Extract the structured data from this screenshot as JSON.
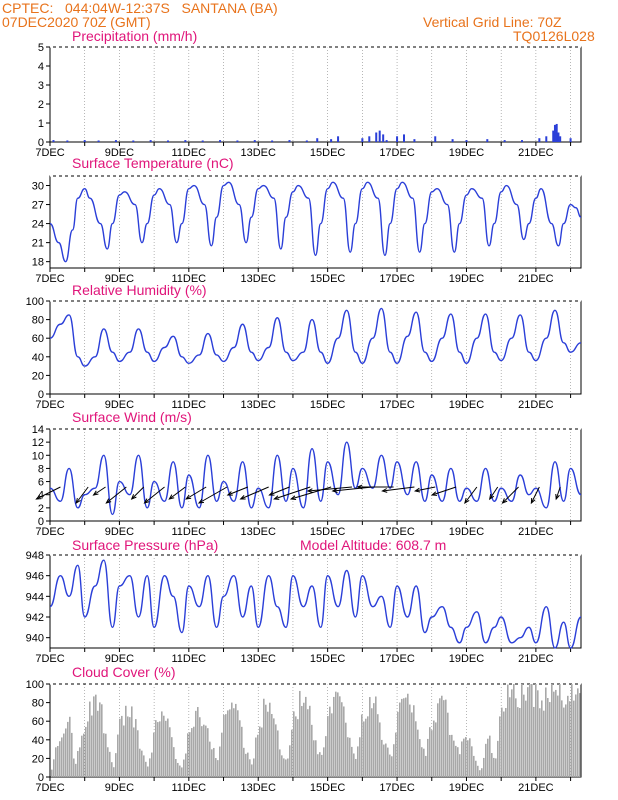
{
  "header": {
    "line1": "CPTEC:   044:04W-12:37S   SANTANA (BA)",
    "line2": "07DEC2020 70Z (GMT)",
    "right1": "Vertical Grid Line: 70Z",
    "right2": "TQ0126L028"
  },
  "colors": {
    "header": "#e8731c",
    "title": "#e0157a",
    "line": "#2b3fd8",
    "cloud": "#a8a8a8",
    "grid": "#888888"
  },
  "date_ticks": [
    "7DEC",
    "9DEC",
    "11DEC",
    "13DEC",
    "15DEC",
    "17DEC",
    "19DEC",
    "21DEC"
  ],
  "date_tick_days": [
    0,
    2,
    4,
    6,
    8,
    10,
    12,
    14
  ],
  "chart_data": [
    {
      "id": "precip",
      "type": "bar",
      "title": "Precipitation (mm/h)",
      "ylim": [
        0,
        5
      ],
      "yticks": [
        0,
        1,
        2,
        3,
        4,
        5
      ],
      "xlim_days": [
        0,
        15.3
      ],
      "x_days": [
        0.1,
        0.5,
        1.0,
        1.4,
        1.9,
        2.4,
        2.9,
        3.4,
        3.9,
        4.4,
        4.9,
        5.4,
        5.9,
        6.4,
        6.9,
        7.4,
        7.7,
        8.1,
        8.3,
        9.0,
        9.2,
        9.4,
        9.5,
        9.6,
        9.7,
        10.0,
        10.2,
        10.5,
        11.1,
        11.6,
        12.0,
        12.6,
        13.1,
        13.6,
        14.1,
        14.3,
        14.5,
        14.55,
        14.6,
        14.65,
        14.7,
        15.0
      ],
      "values": [
        0.1,
        0.08,
        0.1,
        0.08,
        0.1,
        0.08,
        0.1,
        0.08,
        0.1,
        0.08,
        0.1,
        0.08,
        0.1,
        0.08,
        0.1,
        0.08,
        0.2,
        0.15,
        0.3,
        0.2,
        0.3,
        0.5,
        0.6,
        0.4,
        0.1,
        0.3,
        0.4,
        0.15,
        0.3,
        0.15,
        0.1,
        0.15,
        0.1,
        0.1,
        0.2,
        0.3,
        0.6,
        0.9,
        0.95,
        0.5,
        0.3,
        0.2
      ]
    },
    {
      "id": "temp",
      "type": "line",
      "title": "Surface Temperature (nC)",
      "ylim": [
        17,
        31.5
      ],
      "yticks": [
        18,
        21,
        24,
        27,
        30
      ],
      "x_days": [
        0,
        0.25,
        0.45,
        0.65,
        0.8,
        1.0,
        1.15,
        1.45,
        1.65,
        1.8,
        2.0,
        2.15,
        2.45,
        2.65,
        2.8,
        3.0,
        3.15,
        3.45,
        3.65,
        3.8,
        4.0,
        4.15,
        4.45,
        4.65,
        4.8,
        5.0,
        5.15,
        5.45,
        5.65,
        5.8,
        6.0,
        6.15,
        6.45,
        6.65,
        6.8,
        7.0,
        7.15,
        7.45,
        7.65,
        7.8,
        8.0,
        8.15,
        8.45,
        8.65,
        8.8,
        9.0,
        9.15,
        9.45,
        9.65,
        9.8,
        10.0,
        10.15,
        10.45,
        10.65,
        10.8,
        11.0,
        11.15,
        11.45,
        11.65,
        11.8,
        12.0,
        12.15,
        12.45,
        12.65,
        12.8,
        13.0,
        13.15,
        13.45,
        13.65,
        13.8,
        14.0,
        14.15,
        14.45,
        14.65,
        14.8,
        15.0,
        15.15,
        15.3
      ],
      "values": [
        24,
        21,
        18,
        23,
        28,
        29.5,
        28,
        24,
        20,
        24,
        28.5,
        29,
        27,
        21,
        24,
        28.5,
        29.5,
        27,
        21,
        24,
        29.5,
        30,
        27,
        20.5,
        25,
        30,
        30.5,
        27,
        21,
        25,
        29.5,
        30,
        28,
        20,
        25,
        29,
        30,
        28,
        19,
        24,
        29.5,
        30.5,
        28,
        19.5,
        24,
        29.5,
        30.5,
        28,
        19,
        24,
        29.5,
        30.5,
        28,
        19.5,
        24,
        29,
        29.5,
        27,
        19.5,
        24,
        28.5,
        29.5,
        28,
        20.5,
        24,
        29,
        30,
        27,
        21.5,
        24,
        28,
        29.5,
        24,
        20.5,
        24,
        27,
        26.5,
        25
      ]
    },
    {
      "id": "rh",
      "type": "line",
      "title": "Relative Humidity (%)",
      "ylim": [
        0,
        100
      ],
      "yticks": [
        0,
        20,
        40,
        60,
        80,
        100
      ],
      "x_days": [
        0,
        0.3,
        0.55,
        0.8,
        1.0,
        1.3,
        1.55,
        1.8,
        2.0,
        2.3,
        2.55,
        2.8,
        3.0,
        3.3,
        3.55,
        3.8,
        4.0,
        4.3,
        4.55,
        4.8,
        5.0,
        5.3,
        5.55,
        5.8,
        6.0,
        6.3,
        6.55,
        6.8,
        7.0,
        7.3,
        7.55,
        7.8,
        8.0,
        8.3,
        8.55,
        8.8,
        9.0,
        9.3,
        9.55,
        9.8,
        10.0,
        10.3,
        10.55,
        10.8,
        11.0,
        11.3,
        11.55,
        11.8,
        12.0,
        12.3,
        12.55,
        12.8,
        13.0,
        13.3,
        13.55,
        13.8,
        14.0,
        14.3,
        14.55,
        14.8,
        15.0,
        15.3
      ],
      "values": [
        60,
        75,
        85,
        40,
        30,
        40,
        70,
        45,
        35,
        45,
        70,
        45,
        35,
        50,
        62,
        40,
        33,
        42,
        65,
        42,
        35,
        50,
        75,
        45,
        36,
        50,
        82,
        45,
        36,
        45,
        80,
        45,
        33,
        60,
        90,
        45,
        33,
        60,
        92,
        45,
        33,
        62,
        88,
        45,
        35,
        60,
        86,
        45,
        33,
        60,
        86,
        45,
        36,
        60,
        85,
        45,
        36,
        60,
        90,
        55,
        45,
        55
      ]
    },
    {
      "id": "wind",
      "type": "line",
      "title": "Surface Wind (m/s)",
      "ylim": [
        0,
        14
      ],
      "yticks": [
        0,
        2,
        4,
        6,
        8,
        10,
        12,
        14
      ],
      "x_days": [
        0,
        0.3,
        0.55,
        0.8,
        1.0,
        1.3,
        1.55,
        1.8,
        2.0,
        2.3,
        2.55,
        2.8,
        3.0,
        3.3,
        3.55,
        3.8,
        4.0,
        4.3,
        4.55,
        4.8,
        5.0,
        5.3,
        5.55,
        5.8,
        6.0,
        6.3,
        6.55,
        6.8,
        7.0,
        7.3,
        7.55,
        7.8,
        8.0,
        8.3,
        8.55,
        8.8,
        9.0,
        9.3,
        9.55,
        9.8,
        10.0,
        10.3,
        10.55,
        10.8,
        11.0,
        11.3,
        11.55,
        11.8,
        12.0,
        12.3,
        12.55,
        12.8,
        13.0,
        13.3,
        13.55,
        13.8,
        14.0,
        14.3,
        14.55,
        14.8,
        15.0,
        15.3
      ],
      "values": [
        5,
        3,
        8,
        2,
        4,
        5,
        10,
        1,
        6,
        4,
        10,
        2,
        6,
        3,
        9,
        2,
        7,
        2,
        10,
        3,
        6,
        3,
        9,
        2,
        5,
        2,
        10,
        3,
        8,
        2,
        11,
        3,
        9,
        4,
        12,
        5,
        8,
        5,
        10,
        5,
        9,
        4,
        9,
        3,
        7,
        3,
        8,
        3,
        5,
        3,
        8,
        3,
        5,
        3,
        7,
        4,
        5,
        2,
        9,
        3,
        8,
        4
      ]
    },
    {
      "id": "pres",
      "type": "line",
      "title": "Surface Pressure (hPa)",
      "annotation": "Model Altitude: 608.7 m",
      "ylim": [
        939,
        948
      ],
      "yticks": [
        940,
        942,
        944,
        946,
        948
      ],
      "x_days": [
        0,
        0.3,
        0.55,
        0.8,
        1.0,
        1.3,
        1.55,
        1.8,
        2.0,
        2.3,
        2.55,
        2.8,
        3.0,
        3.3,
        3.55,
        3.8,
        4.0,
        4.3,
        4.55,
        4.8,
        5.0,
        5.3,
        5.55,
        5.8,
        6.0,
        6.3,
        6.55,
        6.8,
        7.0,
        7.3,
        7.55,
        7.8,
        8.0,
        8.3,
        8.55,
        8.8,
        9.0,
        9.3,
        9.55,
        9.8,
        10.0,
        10.3,
        10.55,
        10.8,
        11.0,
        11.3,
        11.55,
        11.8,
        12.0,
        12.3,
        12.55,
        12.8,
        13.0,
        13.3,
        13.55,
        13.8,
        14.0,
        14.3,
        14.55,
        14.8,
        15.0,
        15.3
      ],
      "values": [
        943,
        946,
        944,
        947,
        942,
        945,
        947.5,
        941,
        945,
        946,
        942,
        946,
        941,
        946,
        944,
        940.5,
        945,
        943,
        946,
        941,
        944,
        946,
        942,
        945,
        941,
        946,
        943,
        941,
        946,
        943,
        945,
        941,
        946,
        943,
        946.5,
        942,
        946,
        943,
        944,
        941,
        945,
        942,
        945,
        940.5,
        942,
        943,
        941,
        939.5,
        941,
        942.5,
        939.5,
        941,
        942,
        939.5,
        940,
        941,
        939.5,
        943,
        939,
        941.5,
        939,
        942
      ]
    },
    {
      "id": "cloud",
      "type": "area",
      "title": "Cloud Cover (%)",
      "ylim": [
        0,
        100
      ],
      "yticks": [
        0,
        20,
        40,
        60,
        80,
        100
      ],
      "x_days": [
        0,
        0.2,
        0.4,
        0.55,
        0.7,
        0.85,
        1.0,
        1.2,
        1.4,
        1.6,
        1.8,
        2.0,
        2.2,
        2.4,
        2.6,
        2.8,
        3.0,
        3.2,
        3.4,
        3.6,
        3.8,
        4.0,
        4.2,
        4.4,
        4.6,
        4.8,
        5.0,
        5.2,
        5.4,
        5.6,
        5.8,
        6.0,
        6.2,
        6.4,
        6.6,
        6.8,
        7.0,
        7.2,
        7.4,
        7.6,
        7.8,
        8.0,
        8.2,
        8.4,
        8.6,
        8.8,
        9.0,
        9.2,
        9.4,
        9.6,
        9.8,
        10.0,
        10.2,
        10.4,
        10.6,
        10.8,
        11.0,
        11.2,
        11.4,
        11.6,
        11.8,
        12.0,
        12.2,
        12.4,
        12.6,
        12.8,
        13.0,
        13.2,
        13.4,
        13.6,
        13.8,
        14.0,
        14.2,
        14.4,
        14.6,
        14.8,
        15.0,
        15.2,
        15.3
      ],
      "values": [
        5,
        40,
        65,
        75,
        10,
        45,
        60,
        85,
        90,
        40,
        10,
        60,
        80,
        70,
        30,
        10,
        55,
        75,
        60,
        20,
        10,
        60,
        75,
        65,
        40,
        20,
        70,
        85,
        80,
        30,
        15,
        60,
        85,
        80,
        35,
        15,
        70,
        90,
        85,
        40,
        20,
        70,
        85,
        80,
        45,
        20,
        75,
        85,
        80,
        40,
        20,
        75,
        90,
        85,
        45,
        25,
        70,
        85,
        75,
        40,
        30,
        55,
        20,
        5,
        50,
        15,
        80,
        98,
        95,
        95,
        98,
        97,
        95,
        97,
        98,
        95,
        97,
        95,
        85
      ]
    },
    {
      "id": "wind_vectors",
      "type": "scatter",
      "description_none": "",
      "x_days": [
        0.3,
        1.1,
        1.6,
        2.2,
        2.7,
        3.3,
        3.9,
        4.5,
        5.1,
        5.7,
        6.3,
        6.9,
        7.5,
        8.1,
        8.7,
        9.3,
        9.9,
        10.5,
        11.1,
        11.7,
        12.3,
        12.9,
        13.5,
        14.1,
        14.7
      ],
      "u": [
        -6,
        -3,
        -3,
        -5,
        -3,
        -5,
        -4,
        -5,
        -7,
        -5,
        -7,
        -5,
        -9,
        -10,
        -11,
        -10,
        -9,
        -8,
        -5,
        -6,
        -3,
        -2,
        -4,
        -2,
        -1
      ],
      "v": [
        -3,
        -4,
        -2,
        -4,
        -3,
        -4,
        -3,
        -3,
        -4,
        -2,
        -3,
        -2,
        -3,
        -3,
        -1,
        -1,
        0,
        -1,
        -1,
        -2,
        -4,
        -3,
        -4,
        -4,
        -3
      ]
    }
  ]
}
